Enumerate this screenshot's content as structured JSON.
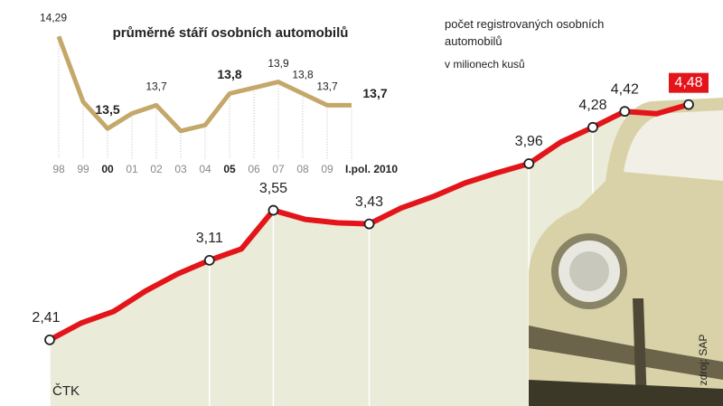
{
  "chart_data": [
    {
      "type": "area-line",
      "title": "počet registrovaných osobních automobilů",
      "subtitle": "v milionech kusů",
      "categories": [
        null,
        null,
        null,
        null,
        null,
        null,
        null,
        null,
        null,
        null,
        null,
        null,
        null,
        null,
        null,
        null,
        null,
        null,
        null,
        null,
        null
      ],
      "values": [
        2.41,
        2.56,
        2.66,
        2.84,
        2.99,
        3.11,
        3.21,
        3.55,
        3.47,
        3.44,
        3.43,
        3.57,
        3.67,
        3.79,
        3.88,
        3.96,
        4.15,
        4.28,
        4.42,
        4.4,
        4.48
      ],
      "value_labels": [
        "2,41",
        null,
        null,
        null,
        null,
        "3,11",
        null,
        "3,55",
        null,
        null,
        "3,43",
        null,
        null,
        null,
        null,
        "3,96",
        null,
        "4,28",
        "4,42",
        null,
        "4,48"
      ],
      "ylim": [
        1.9,
        5.4
      ],
      "color": "#e3151a",
      "fill": "#ebebd9",
      "highlight_last": true,
      "credit": "ČTK",
      "source": "zdroj: SAP"
    },
    {
      "type": "line",
      "title": "průměrné stáří osobních automobilů",
      "categories": [
        "98",
        "99",
        "00",
        "01",
        "02",
        "03",
        "04",
        "05",
        "06",
        "07",
        "08",
        "09",
        "I.pol. 2010"
      ],
      "values": [
        14.29,
        13.73,
        13.5,
        13.63,
        13.7,
        13.48,
        13.53,
        13.8,
        13.85,
        13.9,
        13.8,
        13.7,
        13.7
      ],
      "value_labels": [
        "14,29",
        null,
        "13,5",
        null,
        "13,7",
        null,
        null,
        "13,8",
        null,
        "13,9",
        "13,8",
        "13,7",
        "13,7"
      ],
      "bold": [
        false,
        false,
        true,
        false,
        false,
        false,
        false,
        true,
        false,
        false,
        false,
        false,
        true
      ],
      "ylim": [
        13.2,
        14.4
      ],
      "color": "#c4a86a"
    }
  ]
}
